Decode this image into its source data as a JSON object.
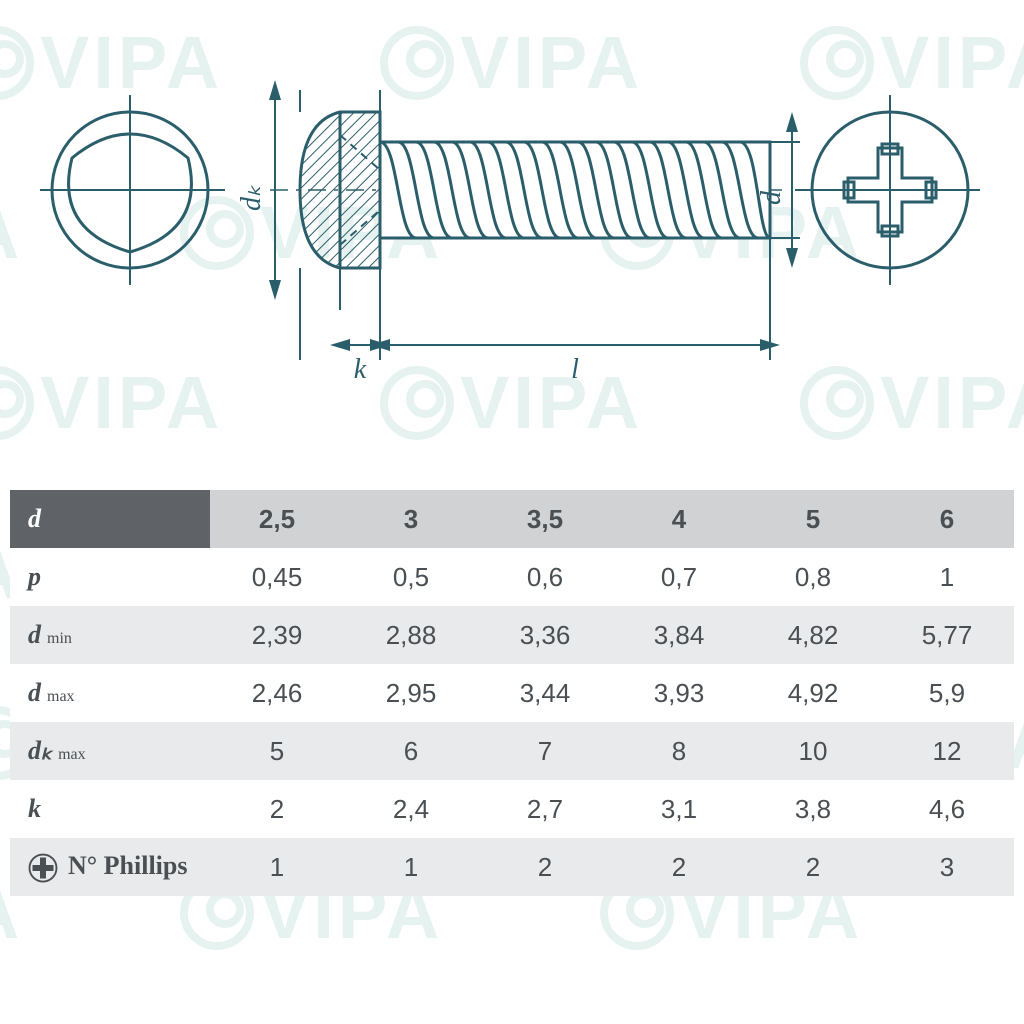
{
  "diagram": {
    "labels": {
      "dk": "dₖ",
      "k": "k",
      "l": "l",
      "d": "d"
    },
    "stroke": "#2b5e6b",
    "hatch": "#2b5e6b"
  },
  "table": {
    "header_bg": "#d0d2d4",
    "header_label_bg": "#5f6368",
    "shade_bg": "#e9eaeb",
    "text_color": "#4a4f53",
    "columns": [
      "2,5",
      "3",
      "3,5",
      "4",
      "5",
      "6"
    ],
    "rows": [
      {
        "label": "d",
        "sub": "",
        "type": "header",
        "values": [
          "2,5",
          "3",
          "3,5",
          "4",
          "5",
          "6"
        ]
      },
      {
        "label": "p",
        "sub": "",
        "type": "plain",
        "values": [
          "0,45",
          "0,5",
          "0,6",
          "0,7",
          "0,8",
          "1"
        ]
      },
      {
        "label": "d",
        "sub": "min",
        "type": "shade",
        "values": [
          "2,39",
          "2,88",
          "3,36",
          "3,84",
          "4,82",
          "5,77"
        ]
      },
      {
        "label": "d",
        "sub": "max",
        "type": "plain",
        "values": [
          "2,46",
          "2,95",
          "3,44",
          "3,93",
          "4,92",
          "5,9"
        ]
      },
      {
        "label": "dₖ",
        "sub": "max",
        "type": "shade",
        "values": [
          "5",
          "6",
          "7",
          "8",
          "10",
          "12"
        ]
      },
      {
        "label": "k",
        "sub": "",
        "type": "plain",
        "values": [
          "2",
          "2,4",
          "2,7",
          "3,1",
          "3,8",
          "4,6"
        ]
      },
      {
        "label": "N° Phillips",
        "sub": "",
        "type": "shade",
        "values": [
          "1",
          "1",
          "2",
          "2",
          "2",
          "3"
        ],
        "icon": "phillips"
      }
    ]
  },
  "watermark": {
    "text": "VIPA",
    "color": "rgba(0,128,96,0.10)"
  }
}
